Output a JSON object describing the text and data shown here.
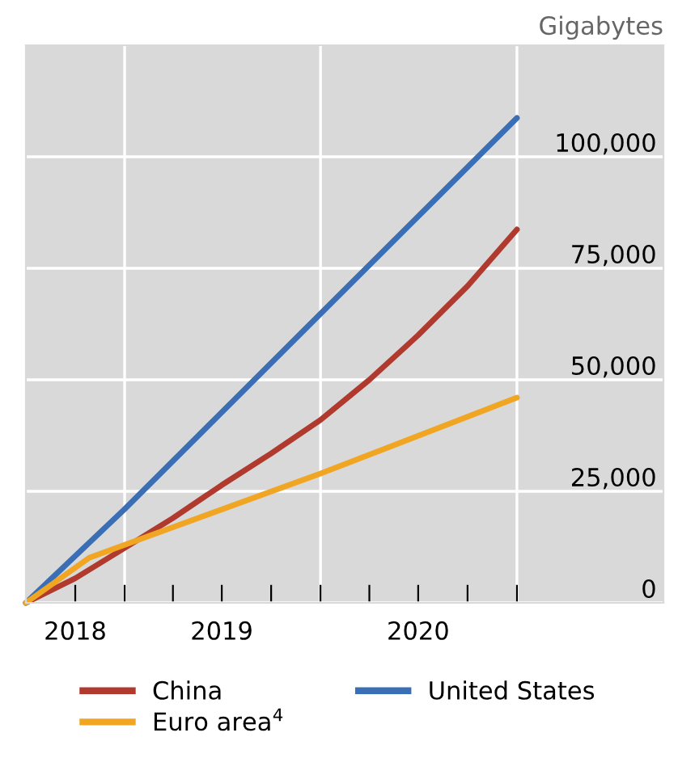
{
  "chart_data": {
    "type": "line",
    "ylabel": "Gigabytes",
    "xlim": [
      "2018-07-01",
      "2021-10-01"
    ],
    "ylim": [
      0,
      125000
    ],
    "xticks": [
      {
        "value": "2018-10-01",
        "label": "2018"
      },
      {
        "value": "2019-01-01",
        "label": null
      },
      {
        "value": "2019-04-01",
        "label": null
      },
      {
        "value": "2019-07-01",
        "label": "2019"
      },
      {
        "value": "2019-10-01",
        "label": null
      },
      {
        "value": "2020-01-01",
        "label": null
      },
      {
        "value": "2020-04-01",
        "label": null
      },
      {
        "value": "2020-07-01",
        "label": "2020"
      },
      {
        "value": "2020-10-01",
        "label": null
      },
      {
        "value": "2021-01-01",
        "label": null
      }
    ],
    "yticks": [
      {
        "value": 0,
        "label": "0"
      },
      {
        "value": 25000,
        "label": "25,000"
      },
      {
        "value": 50000,
        "label": "50,000"
      },
      {
        "value": 75000,
        "label": "75,000"
      },
      {
        "value": 100000,
        "label": "100,000"
      }
    ],
    "grid": "y",
    "legend": "bottom",
    "marker": "none",
    "line_style": "solid",
    "ref_lines": [
      {
        "axis": "x",
        "value": "2019-01-01",
        "label": null,
        "color": "#ffffff"
      },
      {
        "axis": "x",
        "value": "2020-01-01",
        "label": null,
        "color": "#ffffff"
      },
      {
        "axis": "x",
        "value": "2021-01-01",
        "label": null,
        "color": "#ffffff"
      }
    ],
    "series": [
      {
        "name": "China",
        "color": "#b03a2e",
        "x": [
          "2018-07-01",
          "2018-10-01",
          "2019-01-01",
          "2019-04-01",
          "2019-07-01",
          "2019-10-01",
          "2020-01-01",
          "2020-04-01",
          "2020-07-01",
          "2020-10-01",
          "2021-01-01"
        ],
        "values": [
          0,
          5500,
          12300,
          19000,
          26400,
          33500,
          41000,
          50000,
          60000,
          71000,
          83700
        ]
      },
      {
        "name": "United States",
        "color": "#3a6eb5",
        "x": [
          "2018-07-01",
          "2019-01-01",
          "2020-01-01",
          "2021-01-01"
        ],
        "values": [
          0,
          21000,
          64800,
          108700
        ]
      },
      {
        "name": "Euro area$^{4}$",
        "color": "#f0a623",
        "x": [
          "2018-07-01",
          "2018-10-27",
          "2019-01-01",
          "2020-01-01",
          "2021-01-01"
        ],
        "values": [
          0,
          10100,
          13000,
          29000,
          46000
        ]
      }
    ]
  }
}
